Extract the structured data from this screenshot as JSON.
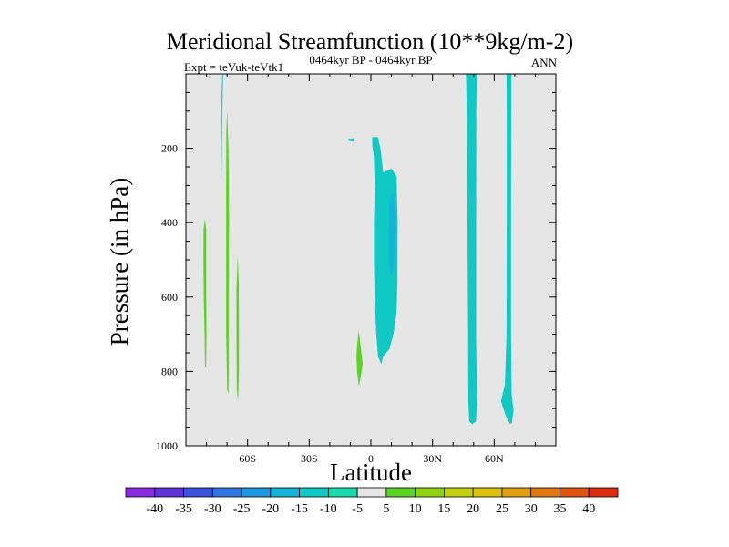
{
  "chart_data": {
    "type": "contour",
    "title": "Meridional Streamfunction (10**9kg/m-2)",
    "left_subtitle": "Expt = teVuk-teVtk1",
    "center_subtitle": "0464kyr BP - 0464kyr BP",
    "right_subtitle": "ANN",
    "xlabel": "Latitude",
    "ylabel": "Pressure (in hPa)",
    "x_range": [
      -90,
      90
    ],
    "y_range": [
      0,
      1000
    ],
    "y_inverted": true,
    "x_ticks": [
      {
        "value": -60,
        "label": "60S"
      },
      {
        "value": -30,
        "label": "30S"
      },
      {
        "value": 0,
        "label": "0"
      },
      {
        "value": 30,
        "label": "30N"
      },
      {
        "value": 60,
        "label": "60N"
      }
    ],
    "y_ticks": [
      {
        "value": 200,
        "label": "200"
      },
      {
        "value": 400,
        "label": "400"
      },
      {
        "value": 600,
        "label": "600"
      },
      {
        "value": 800,
        "label": "800"
      },
      {
        "value": 1000,
        "label": "1000"
      }
    ],
    "background_color": "#e6e6e6",
    "colorbar": {
      "labels": [
        "-40",
        "-35",
        "-30",
        "-25",
        "-20",
        "-15",
        "-10",
        "-5",
        "5",
        "10",
        "15",
        "20",
        "25",
        "30",
        "35",
        "40"
      ],
      "colors": [
        "#8a2be2",
        "#5c32d6",
        "#3a52dc",
        "#2f74e0",
        "#1f96e0",
        "#12b4d8",
        "#10c8c4",
        "#1ad9ac",
        "#e6e6e6",
        "#5ad322",
        "#8ed212",
        "#c3cf12",
        "#dcc210",
        "#e0a010",
        "#e07a10",
        "#e05410",
        "#dc2d0e"
      ]
    },
    "regions": [
      {
        "name": "negative-5-to-10-near-equator",
        "color": "#10c8c4",
        "points": [
          [
            0.6,
            170
          ],
          [
            3.4,
            170
          ],
          [
            4.8,
            205
          ],
          [
            6,
            265
          ],
          [
            10,
            255
          ],
          [
            12.5,
            275
          ],
          [
            13,
            395
          ],
          [
            12.9,
            560
          ],
          [
            12.5,
            640
          ],
          [
            11,
            700
          ],
          [
            9,
            740
          ],
          [
            6,
            760
          ],
          [
            5,
            780
          ],
          [
            3.5,
            760
          ],
          [
            2.6,
            700
          ],
          [
            1.8,
            600
          ],
          [
            1.5,
            500
          ],
          [
            1.5,
            400
          ],
          [
            1.9,
            300
          ],
          [
            1.4,
            220
          ],
          [
            0.7,
            195
          ]
        ]
      },
      {
        "name": "negative-10-to-15-core",
        "color": "#12b4d8",
        "points": [
          [
            9.5,
            330
          ],
          [
            11,
            320
          ],
          [
            11.7,
            380
          ],
          [
            11.5,
            460
          ],
          [
            10.9,
            530
          ],
          [
            9.6,
            545
          ],
          [
            8.8,
            500
          ],
          [
            8.8,
            420
          ],
          [
            9,
            360
          ]
        ]
      },
      {
        "name": "negative-5-to-10-small",
        "color": "#10c8c4",
        "points": [
          [
            -10.8,
            175
          ],
          [
            -8.2,
            173
          ],
          [
            -8.2,
            182
          ],
          [
            -10.8,
            180
          ]
        ]
      },
      {
        "name": "negative-5-to-10-strip-45n",
        "color": "#10c8c4",
        "points": [
          [
            46.3,
            0
          ],
          [
            51.5,
            0
          ],
          [
            51.3,
            100
          ],
          [
            51.2,
            400
          ],
          [
            51.2,
            700
          ],
          [
            51.6,
            890
          ],
          [
            51.1,
            935
          ],
          [
            49.2,
            942
          ],
          [
            47.9,
            935
          ],
          [
            47.4,
            880
          ],
          [
            47.3,
            700
          ],
          [
            47,
            400
          ],
          [
            46.7,
            100
          ]
        ]
      },
      {
        "name": "negative-5-to-10-strip-65n",
        "color": "#10c8c4",
        "points": [
          [
            66,
            0
          ],
          [
            68.3,
            0
          ],
          [
            68.3,
            100
          ],
          [
            68.2,
            400
          ],
          [
            68.2,
            700
          ],
          [
            68.5,
            860
          ],
          [
            69.4,
            905
          ],
          [
            68.6,
            940
          ],
          [
            67.5,
            940
          ],
          [
            65.7,
            920
          ],
          [
            63.3,
            880
          ],
          [
            65.2,
            835
          ],
          [
            66,
            700
          ],
          [
            66.1,
            400
          ],
          [
            66.1,
            100
          ]
        ]
      },
      {
        "name": "negative-5-to-10-thin-75s",
        "color": "#10c8c4",
        "points": [
          [
            -72.3,
            0
          ],
          [
            -71.9,
            0
          ],
          [
            -72.3,
            100
          ],
          [
            -72.5,
            200
          ],
          [
            -72.7,
            285
          ],
          [
            -72.9,
            200
          ],
          [
            -72.9,
            100
          ]
        ]
      },
      {
        "name": "positive-5-to-10-75s",
        "color": "#5ad322",
        "points": [
          [
            -80.8,
            390
          ],
          [
            -80.1,
            420
          ],
          [
            -80.1,
            600
          ],
          [
            -80,
            700
          ],
          [
            -80.2,
            790
          ],
          [
            -80.7,
            790
          ],
          [
            -80.9,
            700
          ],
          [
            -81.3,
            600
          ],
          [
            -81.5,
            500
          ],
          [
            -81.4,
            420
          ]
        ]
      },
      {
        "name": "positive-5-to-10-70s",
        "color": "#5ad322",
        "points": [
          [
            -69.9,
            100
          ],
          [
            -69.3,
            200
          ],
          [
            -69,
            400
          ],
          [
            -69.2,
            600
          ],
          [
            -69.2,
            800
          ],
          [
            -69.3,
            860
          ],
          [
            -69.9,
            850
          ],
          [
            -70.4,
            700
          ],
          [
            -70.4,
            500
          ],
          [
            -70.4,
            300
          ],
          [
            -70.3,
            150
          ]
        ]
      },
      {
        "name": "positive-5-to-10-65s",
        "color": "#5ad322",
        "points": [
          [
            -64.8,
            490
          ],
          [
            -64.3,
            560
          ],
          [
            -64.2,
            680
          ],
          [
            -64.2,
            800
          ],
          [
            -64.6,
            880
          ],
          [
            -65.2,
            850
          ],
          [
            -65.4,
            700
          ],
          [
            -65.4,
            580
          ]
        ]
      },
      {
        "name": "positive-5-to-10-near-5s",
        "color": "#5ad322",
        "points": [
          [
            -5.9,
            690
          ],
          [
            -4.8,
            740
          ],
          [
            -4,
            780
          ],
          [
            -4.8,
            810
          ],
          [
            -5.9,
            840
          ],
          [
            -6.7,
            800
          ],
          [
            -7,
            760
          ],
          [
            -6.7,
            730
          ]
        ]
      }
    ]
  }
}
